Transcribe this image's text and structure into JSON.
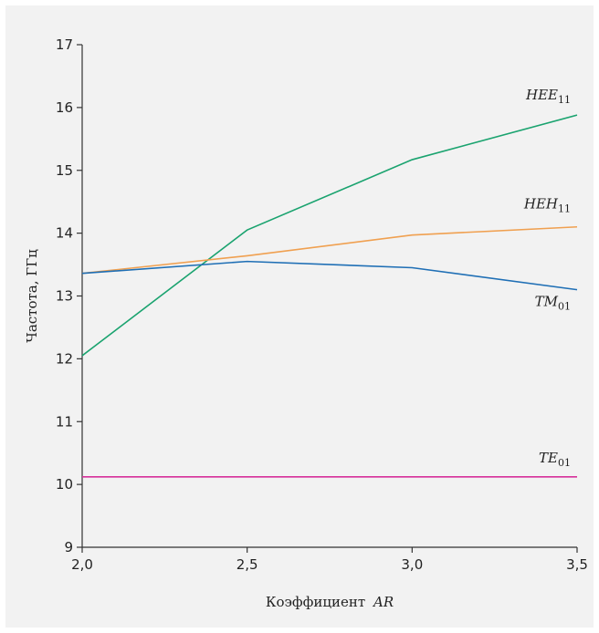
{
  "chart_data": {
    "type": "line",
    "xlabel_main": "Коэффициент",
    "xlabel_var": "AR",
    "ylabel": "Частота, ГГц",
    "xlim": [
      2.0,
      3.5
    ],
    "ylim": [
      9,
      17
    ],
    "x": [
      2.0,
      2.5,
      3.0,
      3.5
    ],
    "x_tick_labels": [
      "2,0",
      "2,5",
      "3,0",
      "3,5"
    ],
    "y_ticks": [
      9,
      10,
      11,
      12,
      13,
      14,
      15,
      16,
      17
    ],
    "grid": false,
    "series": [
      {
        "name": "HEE11",
        "label_main": "HEE",
        "label_sub": "11",
        "color": "#1aa36f",
        "values": [
          12.05,
          14.05,
          15.17,
          15.88
        ]
      },
      {
        "name": "HEH11",
        "label_main": "HEH",
        "label_sub": "11",
        "color": "#f0a050",
        "values": [
          13.36,
          13.64,
          13.97,
          14.1
        ]
      },
      {
        "name": "TM01",
        "label_main": "TM",
        "label_sub": "01",
        "color": "#1f6fb5",
        "values": [
          13.36,
          13.55,
          13.45,
          13.1
        ]
      },
      {
        "name": "TE01",
        "label_main": "TE",
        "label_sub": "01",
        "color": "#d6309a",
        "values": [
          10.12,
          10.12,
          10.12,
          10.12
        ]
      }
    ]
  }
}
